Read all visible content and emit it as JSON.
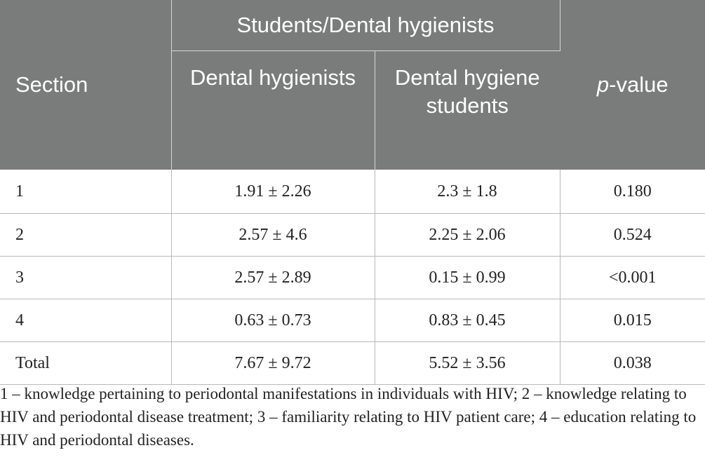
{
  "header": {
    "section": "Section",
    "group": "Students/Dental hygienists",
    "pvalue_italic": "p",
    "pvalue_rest": "-value",
    "sub1": "Dental hygienists",
    "sub2": "Dental hygiene students"
  },
  "rows": [
    {
      "section": "1",
      "hygienists": "1.91 ± 2.26",
      "students": "2.3 ± 1.8",
      "p": "0.180"
    },
    {
      "section": "2",
      "hygienists": "2.57 ± 4.6",
      "students": "2.25 ± 2.06",
      "p": "0.524"
    },
    {
      "section": "3",
      "hygienists": "2.57 ± 2.89",
      "students": "0.15 ± 0.99",
      "p": "<0.001"
    },
    {
      "section": "4",
      "hygienists": "0.63 ± 0.73",
      "students": "0.83 ± 0.45",
      "p": "0.015"
    },
    {
      "section": "Total",
      "hygienists": "7.67 ± 9.72",
      "students": "5.52 ± 3.56",
      "p": "0.038"
    }
  ],
  "footnote": "1 – knowledge pertaining to periodontal manifestations in individuals with HIV; 2 – knowledge relating to HIV and periodontal disease treatment; 3 – familiarity relating to HIV patient care; 4 – education relating to HIV and periodontal diseases."
}
